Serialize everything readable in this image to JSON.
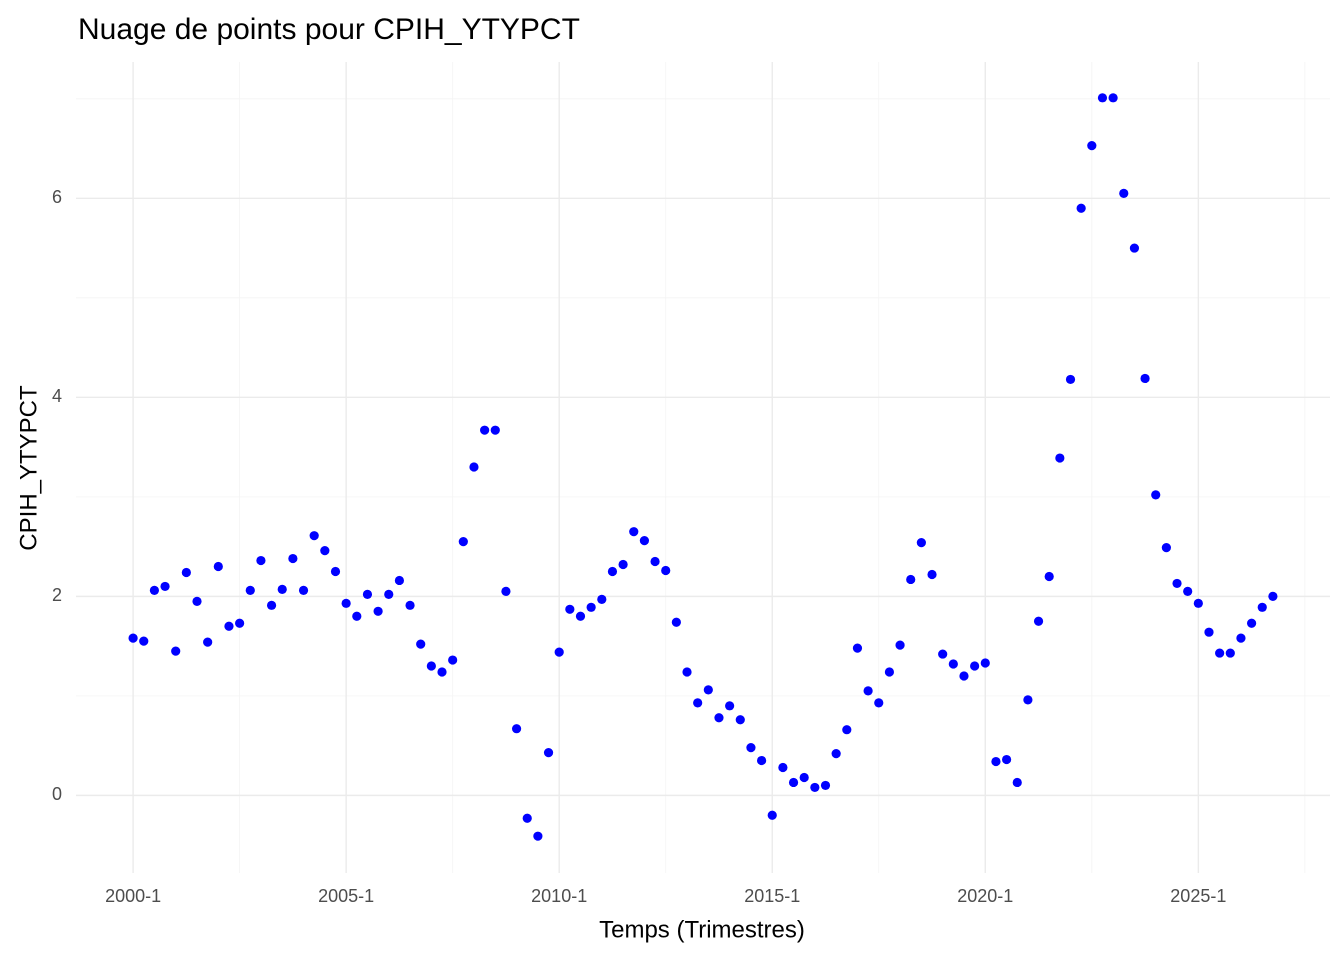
{
  "chart_data": {
    "type": "scatter",
    "title": "Nuage de points pour CPIH_YTYPCT",
    "x_label": "Temps (Trimestres)",
    "y_label": "CPIH_YTYPCT",
    "color": "#0000ff",
    "grid": true,
    "x": [
      2000,
      2000.25,
      2000.5,
      2000.75,
      2001,
      2001.25,
      2001.5,
      2001.75,
      2002,
      2002.25,
      2002.5,
      2002.75,
      2003,
      2003.25,
      2003.5,
      2003.75,
      2004,
      2004.25,
      2004.5,
      2004.75,
      2005,
      2005.25,
      2005.5,
      2005.75,
      2006,
      2006.25,
      2006.5,
      2006.75,
      2007,
      2007.25,
      2007.5,
      2007.75,
      2008,
      2008.25,
      2008.5,
      2008.75,
      2009,
      2009.25,
      2009.5,
      2009.75,
      2010,
      2010.25,
      2010.5,
      2010.75,
      2011,
      2011.25,
      2011.5,
      2011.75,
      2012,
      2012.25,
      2012.5,
      2012.75,
      2013,
      2013.25,
      2013.5,
      2013.75,
      2014,
      2014.25,
      2014.5,
      2014.75,
      2015,
      2015.25,
      2015.5,
      2015.75,
      2016,
      2016.25,
      2016.5,
      2016.75,
      2017,
      2017.25,
      2017.5,
      2017.75,
      2018,
      2018.25,
      2018.5,
      2018.75,
      2019,
      2019.25,
      2019.5,
      2019.75,
      2020,
      2020.25,
      2020.5,
      2020.75,
      2021,
      2021.25,
      2021.5,
      2021.75,
      2022,
      2022.25,
      2022.5,
      2022.75,
      2023,
      2023.25,
      2023.5,
      2023.75,
      2024,
      2024.25,
      2024.5,
      2024.75,
      2025,
      2025.25,
      2025.5,
      2025.75,
      2026,
      2026.25,
      2026.5,
      2026.75
    ],
    "values": [
      1.58,
      1.55,
      2.06,
      2.1,
      1.45,
      2.24,
      1.95,
      1.54,
      2.3,
      1.7,
      1.73,
      2.06,
      2.36,
      1.91,
      2.07,
      2.38,
      2.06,
      2.61,
      2.46,
      2.25,
      1.93,
      1.8,
      2.02,
      1.85,
      2.02,
      2.16,
      1.91,
      1.52,
      1.3,
      1.24,
      1.36,
      2.55,
      3.3,
      3.67,
      3.67,
      2.05,
      0.67,
      -0.23,
      -0.41,
      0.43,
      1.44,
      1.87,
      1.8,
      1.89,
      1.97,
      2.25,
      2.32,
      2.65,
      2.56,
      2.35,
      2.26,
      1.74,
      1.24,
      0.93,
      1.06,
      0.78,
      0.9,
      0.76,
      0.48,
      0.35,
      -0.2,
      0.28,
      0.13,
      0.18,
      0.08,
      0.1,
      0.42,
      0.66,
      1.48,
      1.05,
      0.93,
      1.24,
      1.51,
      2.17,
      2.54,
      2.22,
      1.42,
      1.32,
      1.2,
      1.3,
      1.33,
      0.34,
      0.36,
      0.13,
      0.96,
      1.75,
      2.2,
      3.39,
      4.18,
      5.9,
      6.53,
      7.01,
      7.01,
      6.05,
      5.5,
      4.19,
      3.02,
      2.49,
      2.13,
      2.05,
      1.93,
      1.64,
      1.43,
      1.43,
      1.58,
      1.73,
      1.89,
      2.0
    ],
    "xlim": [
      1998.66,
      2028.09
    ],
    "ylim": [
      -0.78,
      7.37
    ],
    "xticks": [
      {
        "value": 2000,
        "label": "2000-1"
      },
      {
        "value": 2005,
        "label": "2005-1"
      },
      {
        "value": 2010,
        "label": "2010-1"
      },
      {
        "value": 2015,
        "label": "2015-1"
      },
      {
        "value": 2020,
        "label": "2020-1"
      },
      {
        "value": 2025,
        "label": "2025-1"
      }
    ],
    "yticks": [
      0,
      2,
      4,
      6
    ],
    "xminor": [
      2002.5,
      2007.5,
      2012.5,
      2017.5,
      2022.5,
      2027.5
    ],
    "yminor": [
      1,
      3,
      5,
      7
    ]
  }
}
